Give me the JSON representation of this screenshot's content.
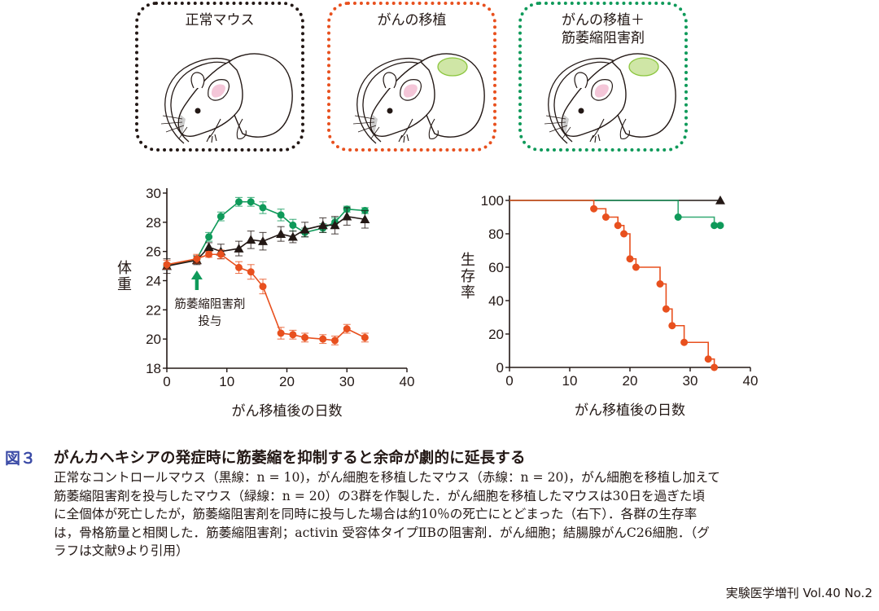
{
  "panels": [
    {
      "title_lines": [
        "正常マウス"
      ],
      "border_color": "#231815",
      "tumor": false
    },
    {
      "title_lines": [
        "がんの移植"
      ],
      "border_color": "#e8501e",
      "tumor": true
    },
    {
      "title_lines": [
        "がんの移植＋",
        "筋萎縮阻害剤"
      ],
      "border_color": "#0f9a5a",
      "tumor": true
    }
  ],
  "colors": {
    "normal": "#231815",
    "cancer": "#e8501e",
    "cancer_inhibitor": "#0f9a5a",
    "tumor_fill": "#cfe6a6",
    "tumor_stroke": "#8cc63f",
    "ear_pink": "#f4c6d8",
    "figure_label": "#3a4aa6"
  },
  "chart_data": [
    {
      "type": "line",
      "title": "",
      "xlabel": "がん移植後の日数",
      "ylabel": "体重",
      "xlim": [
        0,
        40
      ],
      "ylim": [
        18,
        30
      ],
      "xticks": [
        0,
        10,
        20,
        30,
        40
      ],
      "yticks": [
        18,
        20,
        22,
        24,
        26,
        28,
        30
      ],
      "grid": false,
      "annotation": {
        "text_lines": [
          "筋萎縮阻害剤",
          "投与"
        ],
        "x": 5,
        "arrow": "up"
      },
      "series": [
        {
          "name": "正常マウス",
          "marker": "triangle",
          "color": "#231815",
          "x": [
            0,
            5,
            7,
            9,
            12,
            14,
            16,
            19,
            21,
            23,
            26,
            28,
            30,
            33
          ],
          "y": [
            25.0,
            25.4,
            26.3,
            26.0,
            26.2,
            26.8,
            26.7,
            27.2,
            27.0,
            27.5,
            27.8,
            27.8,
            28.4,
            28.2
          ],
          "err": [
            0.5,
            0.3,
            0.3,
            0.5,
            0.5,
            0.6,
            0.6,
            0.5,
            0.4,
            0.5,
            0.5,
            0.6,
            0.6,
            0.6
          ]
        },
        {
          "name": "がんの移植",
          "marker": "circle",
          "color": "#e8501e",
          "x": [
            0,
            5,
            7,
            9,
            12,
            14,
            16,
            19,
            21,
            23,
            26,
            28,
            30,
            33
          ],
          "y": [
            25.1,
            25.5,
            25.8,
            25.8,
            24.9,
            24.6,
            23.6,
            20.4,
            20.3,
            20.1,
            20.0,
            19.9,
            20.7,
            20.1
          ],
          "err": [
            0.3,
            0.3,
            0.2,
            0.3,
            0.4,
            0.5,
            0.5,
            0.4,
            0.3,
            0.3,
            0.3,
            0.3,
            0.3,
            0.3
          ]
        },
        {
          "name": "がんの移植＋筋萎縮阻害剤",
          "marker": "circle",
          "color": "#0f9a5a",
          "x": [
            0,
            5,
            7,
            9,
            12,
            14,
            16,
            19,
            21,
            23,
            26,
            28,
            30,
            33
          ],
          "y": [
            25.0,
            25.5,
            27.0,
            28.4,
            29.4,
            29.4,
            29.0,
            28.5,
            27.8,
            27.3,
            27.6,
            28.0,
            28.9,
            28.8
          ],
          "err": [
            0.2,
            0.2,
            0.3,
            0.3,
            0.3,
            0.3,
            0.4,
            0.4,
            0.4,
            0.3,
            0.3,
            0.3,
            0.2,
            0.2
          ]
        }
      ]
    },
    {
      "type": "line",
      "subtype": "kaplan-meier",
      "title": "",
      "xlabel": "がん移植後の日数",
      "ylabel": "生存率",
      "xlim": [
        0,
        40
      ],
      "ylim": [
        0,
        100
      ],
      "xticks": [
        0,
        10,
        20,
        30,
        40
      ],
      "yticks": [
        0,
        20,
        40,
        60,
        80,
        100
      ],
      "grid": false,
      "series": [
        {
          "name": "正常マウス",
          "marker": "triangle",
          "color": "#231815",
          "steps": [
            [
              0,
              100
            ],
            [
              35,
              100
            ]
          ],
          "markers": [
            [
              35,
              100
            ]
          ]
        },
        {
          "name": "がんの移植＋筋萎縮阻害剤",
          "marker": "circle",
          "color": "#0f9a5a",
          "steps": [
            [
              0,
              100
            ],
            [
              28,
              90
            ],
            [
              34,
              85
            ],
            [
              35,
              85
            ]
          ],
          "markers": [
            [
              28,
              90
            ],
            [
              34,
              85
            ],
            [
              35,
              85
            ]
          ]
        },
        {
          "name": "がんの移植",
          "marker": "circle",
          "color": "#e8501e",
          "steps": [
            [
              0,
              100
            ],
            [
              14,
              95
            ],
            [
              16,
              90
            ],
            [
              18,
              85
            ],
            [
              19,
              80
            ],
            [
              20,
              65
            ],
            [
              21,
              60
            ],
            [
              25,
              50
            ],
            [
              26,
              35
            ],
            [
              27,
              25
            ],
            [
              29,
              15
            ],
            [
              33,
              5
            ],
            [
              34,
              0
            ]
          ],
          "markers": [
            [
              14,
              95
            ],
            [
              16,
              90
            ],
            [
              18,
              85
            ],
            [
              19,
              80
            ],
            [
              20,
              65
            ],
            [
              21,
              60
            ],
            [
              25,
              50
            ],
            [
              26,
              35
            ],
            [
              27,
              25
            ],
            [
              29,
              15
            ],
            [
              33,
              5
            ],
            [
              34,
              0
            ]
          ]
        }
      ]
    }
  ],
  "caption": {
    "label": "図３",
    "title": "がんカヘキシアの発症時に筋萎縮を抑制すると余命が劇的に延長する",
    "lines": [
      "正常なコントロールマウス（黒線：n = 10)，がん細胞を移植したマウス（赤線：n = 20)，がん細胞を移植し加えて",
      "筋萎縮阻害剤を投与したマウス（緑線：n = 20）の3群を作製した．がん細胞を移植したマウスは30日を過ぎた頃",
      "に全個体が死亡したが，筋萎縮阻害剤を同時に投与した場合は約10％の死亡にとどまった（右下）．各群の生存率",
      "は，骨格筋量と相関した．筋萎縮阻害剤；activin 受容体タイプⅡBの阻害剤．がん細胞；結腸腺がんC26細胞．（グ",
      "ラフは文献9より引用）"
    ]
  },
  "journal": "実験医学増刊 Vol.40 No.2"
}
